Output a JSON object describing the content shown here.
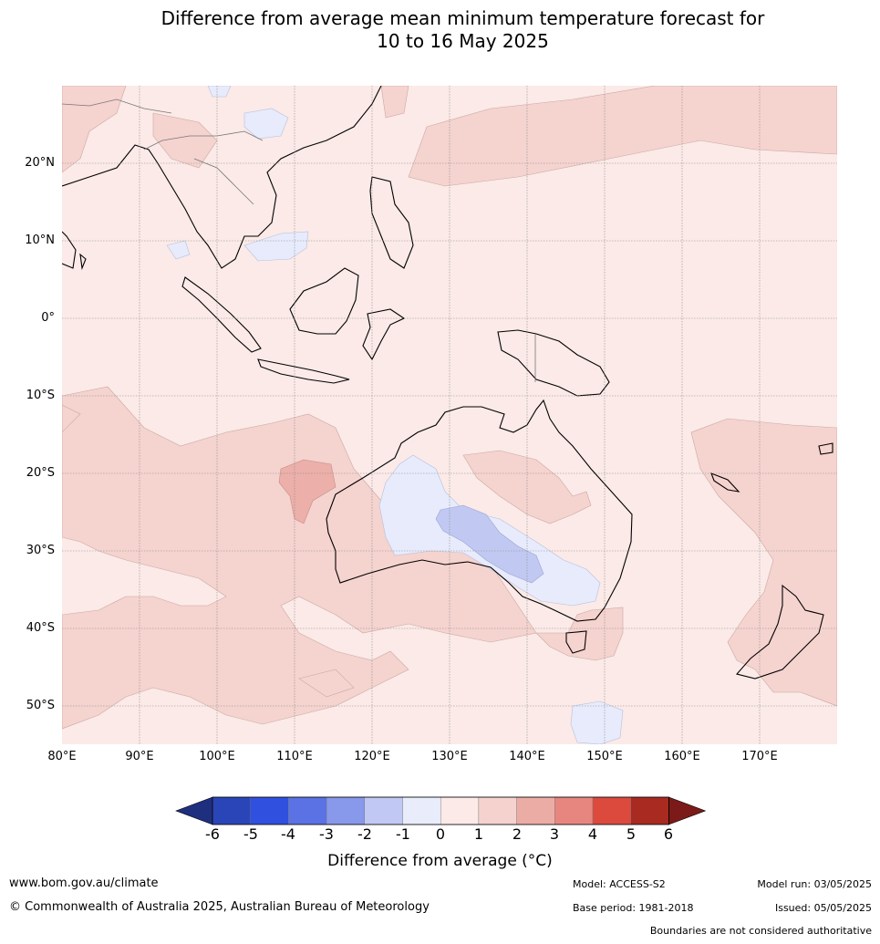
{
  "title": {
    "line1": "Difference from average mean minimum temperature forecast for",
    "line2": "10 to 16 May 2025"
  },
  "map": {
    "lat_labels": [
      "20°N",
      "10°N",
      "0°",
      "10°S",
      "20°S",
      "30°S",
      "40°S",
      "50°S"
    ],
    "lon_labels": [
      "80°E",
      "90°E",
      "100°E",
      "110°E",
      "120°E",
      "130°E",
      "140°E",
      "150°E",
      "160°E",
      "170°E"
    ],
    "background_color": "#fbeae7"
  },
  "colorbar": {
    "title": "Difference from average (°C)",
    "ticks": [
      "-6",
      "-5",
      "-4",
      "-3",
      "-2",
      "-1",
      "0",
      "1",
      "2",
      "3",
      "4",
      "5",
      "6"
    ],
    "colors": [
      "#1f2f7f",
      "#2a45b8",
      "#3050e0",
      "#5a72e4",
      "#8898ea",
      "#c0c8f3",
      "#e8ecfb",
      "#fbeae7",
      "#f5d2ce",
      "#ecaca6",
      "#e6867f",
      "#dc4a3e",
      "#a82a20",
      "#7b1a18"
    ]
  },
  "footer": {
    "website": "www.bom.gov.au/climate",
    "copyright": "© Commonwealth of Australia 2025, Australian Bureau of Meteorology",
    "model": "Model: ACCESS-S2",
    "base_period": "Base period: 1981-2018",
    "model_run": "Model run: 03/05/2025",
    "issued": "Issued: 05/05/2025",
    "disclaimer": "Boundaries are not considered authoritative"
  }
}
